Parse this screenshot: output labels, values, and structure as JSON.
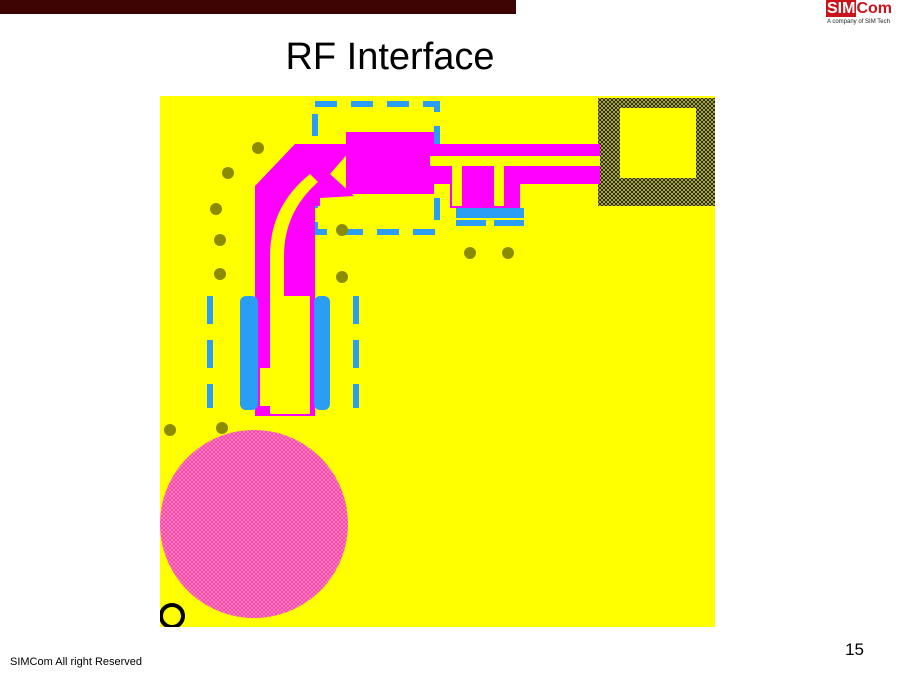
{
  "slide": {
    "title": "RF Interface",
    "page_number": "15",
    "footer": "SIMCom All right Reserved"
  },
  "logo": {
    "brand_part1": "SIM",
    "brand_part2": "Com",
    "tagline": "A company of SIM Tech"
  },
  "colors": {
    "header_bar": "#3e0303",
    "logo_red": "#c8141a",
    "pcb_background": "#ffff00",
    "trace_magenta": "#ff00ff",
    "pad_blue": "#2a9df4",
    "via_olive": "#8b8b00",
    "pink_pad": "#ff3ea5",
    "hatch_dark": "#333333"
  }
}
